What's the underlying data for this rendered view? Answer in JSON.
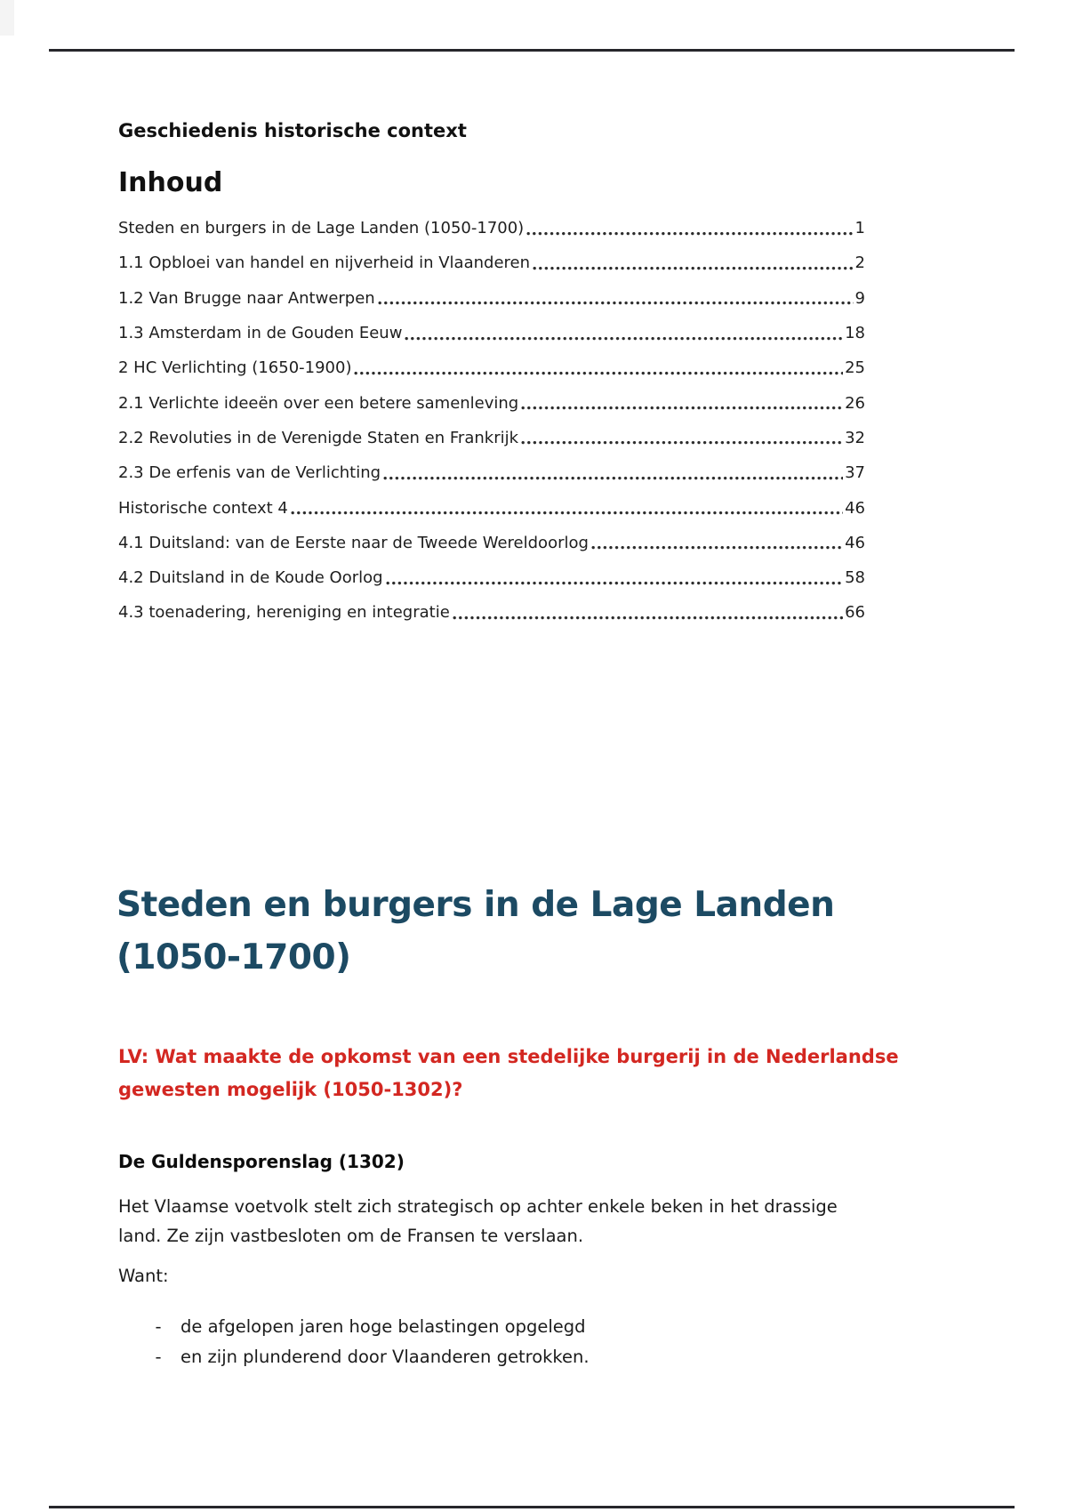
{
  "theme": {
    "heading_color": "#1c4a63",
    "question_color": "#d32721",
    "rule_color": "#26262b",
    "text_color": "#1e1e1e"
  },
  "header": {
    "doc_title": "Geschiedenis historische context",
    "toc_heading": "Inhoud"
  },
  "toc": {
    "entries": [
      {
        "label": "Steden en burgers in de Lage Landen (1050-1700)",
        "page": "1"
      },
      {
        "label": "1.1 Opbloei van handel en nijverheid in Vlaanderen",
        "page": "2"
      },
      {
        "label": "1.2 Van Brugge naar Antwerpen",
        "page": "9"
      },
      {
        "label": "1.3 Amsterdam in de Gouden Eeuw",
        "page": "18"
      },
      {
        "label": "2 HC Verlichting (1650-1900)",
        "page": "25"
      },
      {
        "label": "2.1 Verlichte ideeën over een betere samenleving",
        "page": "26"
      },
      {
        "label": "2.2 Revoluties in de Verenigde Staten en Frankrijk",
        "page": "32"
      },
      {
        "label": "2.3 De erfenis van de Verlichting",
        "page": "37"
      },
      {
        "label": "Historische context 4",
        "page": "46"
      },
      {
        "label": "4.1 Duitsland: van de Eerste naar de Tweede Wereldoorlog",
        "page": "46"
      },
      {
        "label": "4.2 Duitsland in de Koude Oorlog",
        "page": "58"
      },
      {
        "label": "4.3 toenadering, hereniging en integratie",
        "page": "66"
      }
    ]
  },
  "section": {
    "title_lines": [
      "Steden en burgers in de Lage Landen",
      "(1050-1700)"
    ],
    "question_lines": [
      "LV: Wat maakte de opkomst van een stedelijke burgerij in de Nederlandse",
      "gewesten mogelijk (1050-1302)?"
    ],
    "subheading": "De Guldensporenslag (1302)",
    "paragraph_lines": [
      "Het Vlaamse voetvolk stelt zich strategisch op achter enkele beken in het drassige",
      "land. Ze zijn vastbesloten om de Fransen te verslaan."
    ],
    "intro": "Want:",
    "bullet_marker": "-",
    "bullets": [
      "de afgelopen jaren hoge belastingen opgelegd",
      "en zijn plunderend door Vlaanderen getrokken."
    ]
  }
}
